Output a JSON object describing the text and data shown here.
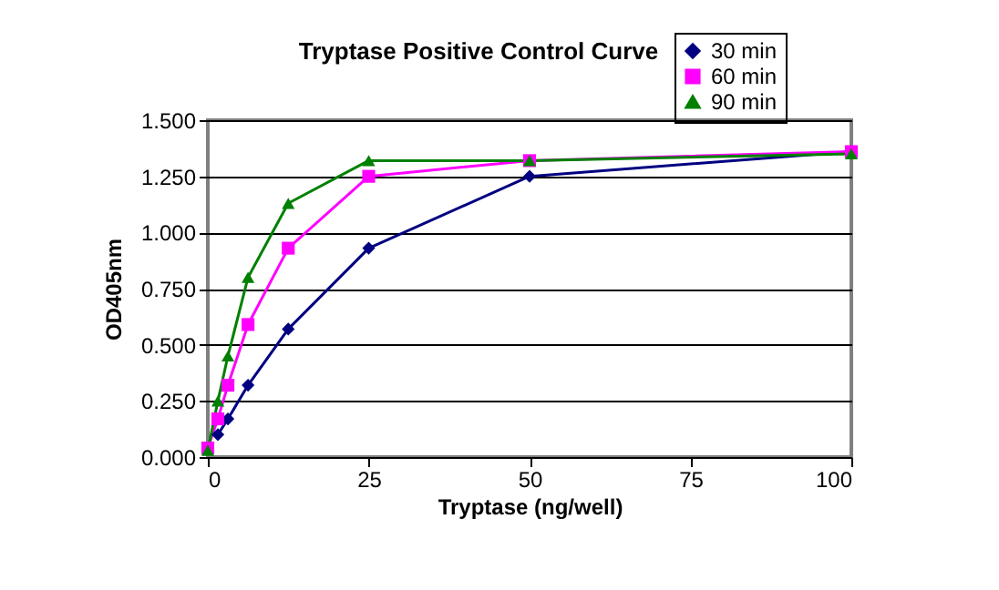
{
  "chart_data": {
    "type": "line",
    "title": "Tryptase Positive Control Curve",
    "xlabel": "Tryptase (ng/well)",
    "ylabel": "OD405nm",
    "x": [
      0,
      1.5625,
      3.125,
      6.25,
      12.5,
      25,
      50,
      100
    ],
    "series": [
      {
        "name": "30 min",
        "color": "#000080",
        "marker": "diamond",
        "values": [
          null,
          0.1,
          0.17,
          0.32,
          0.57,
          0.93,
          1.25,
          1.36
        ]
      },
      {
        "name": "60 min",
        "color": "#ff00ff",
        "marker": "square",
        "values": [
          0.04,
          0.17,
          0.32,
          0.59,
          0.93,
          1.25,
          1.32,
          1.36
        ]
      },
      {
        "name": "90 min",
        "color": "#008000",
        "marker": "triangle",
        "values": [
          0.03,
          0.25,
          0.45,
          0.8,
          1.13,
          1.32,
          1.32,
          1.35
        ]
      }
    ],
    "xlim": [
      0,
      100
    ],
    "xticks": [
      0,
      25,
      50,
      75,
      100
    ],
    "ylim": [
      0,
      1.5
    ],
    "yticks": [
      {
        "value": 0,
        "label": "0.000"
      },
      {
        "value": 0.25,
        "label": "0.250"
      },
      {
        "value": 0.5,
        "label": "0.500"
      },
      {
        "value": 0.75,
        "label": "0.750"
      },
      {
        "value": 1,
        "label": "1.000"
      },
      {
        "value": 1.25,
        "label": "1.250"
      },
      {
        "value": 1.5,
        "label": "1.500"
      }
    ],
    "grid": "y",
    "legend": "top right",
    "line_style": "solid"
  }
}
